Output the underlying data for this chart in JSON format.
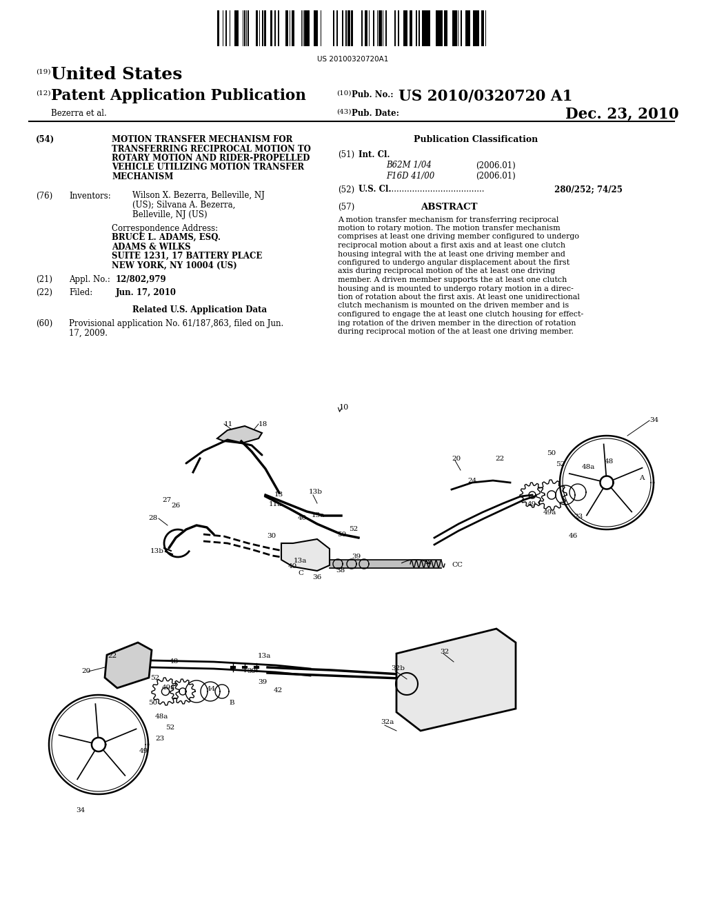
{
  "background_color": "#ffffff",
  "barcode_text": "US 20100320720A1",
  "patent_number": "US 2010/0320720 A1",
  "pub_date": "Dec. 23, 2010",
  "country": "United States",
  "label_19": "(19)",
  "label_12": "(12)",
  "pub_type": "Patent Application Publication",
  "inventors_label": "Bezerra et al.",
  "label_10": "(10)",
  "label_43": "(43)",
  "pub_no_label": "Pub. No.:",
  "pub_date_label": "Pub. Date:",
  "section54_label": "(54)",
  "title_lines": [
    "MOTION TRANSFER MECHANISM FOR",
    "TRANSFERRING RECIPROCAL MOTION TO",
    "ROTARY MOTION AND RIDER-PROPELLED",
    "VEHICLE UTILIZING MOTION TRANSFER",
    "MECHANISM"
  ],
  "section76_label": "(76)",
  "inventors_title": "Inventors:",
  "inv_line1": "Wilson X. Bezerra, Belleville, NJ",
  "inv_line2": "(US); Silvana A. Bezerra,",
  "inv_line3": "Belleville, NJ (US)",
  "corr_line0": "Correspondence Address:",
  "corr_line1": "BRUCE L. ADAMS, ESQ.",
  "corr_line2": "ADAMS & WILKS",
  "corr_line3": "SUITE 1231, 17 BATTERY PLACE",
  "corr_line4": "NEW YORK, NY 10004 (US)",
  "section21_label": "(21)",
  "appl_no_label": "Appl. No.:",
  "appl_no": "12/802,979",
  "section22_label": "(22)",
  "filed_label": "Filed:",
  "filed_date": "Jun. 17, 2010",
  "related_title": "Related U.S. Application Data",
  "section60_label": "(60)",
  "prov_line1": "Provisional application No. 61/187,863, filed on Jun.",
  "prov_line2": "17, 2009.",
  "pub_class_title": "Publication Classification",
  "section51_label": "(51)",
  "intcl_label": "Int. Cl.",
  "intcl_1": "B62M 1/04",
  "intcl_1_date": "(2006.01)",
  "intcl_2": "F16D 41/00",
  "intcl_2_date": "(2006.01)",
  "section52_label": "(52)",
  "uscl_label": "U.S. Cl.",
  "uscl_dots": " .....................................",
  "uscl_value": " 280/252; 74/25",
  "section57_label": "(57)",
  "abstract_title": "ABSTRACT",
  "abstract_lines": [
    "A motion transfer mechanism for transferring reciprocal",
    "motion to rotary motion. The motion transfer mechanism",
    "comprises at least one driving member configured to undergo",
    "reciprocal motion about a first axis and at least one clutch",
    "housing integral with the at least one driving member and",
    "configured to undergo angular displacement about the first",
    "axis during reciprocal motion of the at least one driving",
    "member. A driven member supports the at least one clutch",
    "housing and is mounted to undergo rotary motion in a direc-",
    "tion of rotation about the first axis. At least one unidirectional",
    "clutch mechanism is mounted on the driven member and is",
    "configured to engage the at least one clutch housing for effect-",
    "ing rotation of the driven member in the direction of rotation",
    "during reciprocal motion of the at least one driving member."
  ]
}
